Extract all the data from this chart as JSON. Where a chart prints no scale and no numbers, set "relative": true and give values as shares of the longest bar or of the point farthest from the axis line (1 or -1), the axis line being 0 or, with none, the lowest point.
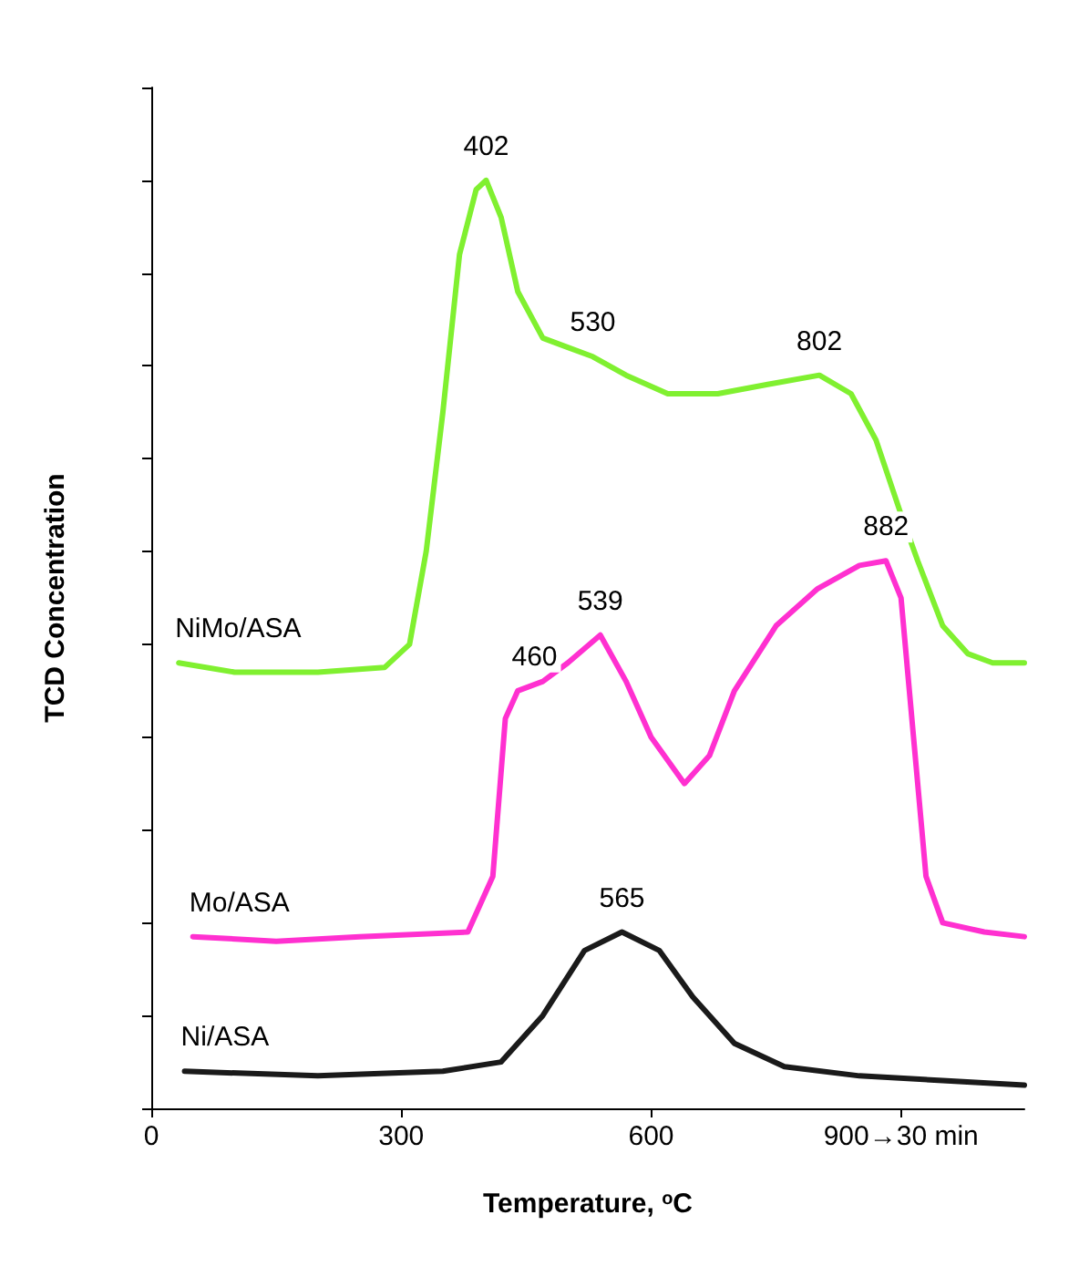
{
  "chart_data": {
    "type": "line",
    "relative": true,
    "xlabel": "Temperature, $^{o}$C",
    "ylabel": "TCD Concentration",
    "xlim": [
      0,
      1048
    ],
    "xticks": [
      0,
      300,
      600,
      {
        "value": 900,
        "label": "900→30 min"
      }
    ],
    "grid": false,
    "legend": false,
    "marker": "none",
    "line_style": "solid",
    "series": [
      {
        "name": "NiMo/ASA",
        "color": "#80f030",
        "x": [
          33,
          100,
          200,
          280,
          310,
          330,
          350,
          370,
          390,
          402,
          420,
          440,
          470,
          500,
          530,
          570,
          620,
          680,
          740,
          802,
          840,
          870,
          900,
          920,
          950,
          980,
          1010,
          1048
        ],
        "values": [
          0.48,
          0.47,
          0.47,
          0.475,
          0.5,
          0.6,
          0.75,
          0.92,
          0.99,
          1.0,
          0.96,
          0.88,
          0.83,
          0.82,
          0.81,
          0.79,
          0.77,
          0.77,
          0.78,
          0.79,
          0.77,
          0.72,
          0.64,
          0.59,
          0.52,
          0.49,
          0.48,
          0.48
        ]
      },
      {
        "name": "Mo/ASA",
        "color": "#ff30d0",
        "x": [
          50,
          150,
          250,
          380,
          410,
          425,
          440,
          470,
          500,
          539,
          570,
          600,
          640,
          670,
          700,
          750,
          800,
          850,
          882,
          900,
          915,
          930,
          950,
          1000,
          1048
        ],
        "values": [
          0.185,
          0.18,
          0.185,
          0.19,
          0.25,
          0.42,
          0.45,
          0.46,
          0.48,
          0.51,
          0.46,
          0.4,
          0.35,
          0.38,
          0.45,
          0.52,
          0.56,
          0.585,
          0.59,
          0.55,
          0.4,
          0.25,
          0.2,
          0.19,
          0.185
        ]
      },
      {
        "name": "Ni/ASA",
        "color": "#1a1a1a",
        "x": [
          40,
          200,
          350,
          420,
          470,
          520,
          565,
          610,
          650,
          700,
          760,
          850,
          950,
          1048
        ],
        "values": [
          0.04,
          0.035,
          0.04,
          0.05,
          0.1,
          0.17,
          0.19,
          0.17,
          0.12,
          0.07,
          0.045,
          0.035,
          0.03,
          0.025
        ]
      }
    ],
    "annotations": [
      {
        "text": "402",
        "x": 402,
        "y": 1.0
      },
      {
        "text": "530",
        "x": 530,
        "y": 0.81
      },
      {
        "text": "802",
        "x": 802,
        "y": 0.79
      },
      {
        "text": "460",
        "x": 460,
        "y": 0.45
      },
      {
        "text": "539",
        "x": 539,
        "y": 0.51
      },
      {
        "text": "882",
        "x": 882,
        "y": 0.59
      },
      {
        "text": "565",
        "x": 565,
        "y": 0.19
      }
    ]
  }
}
